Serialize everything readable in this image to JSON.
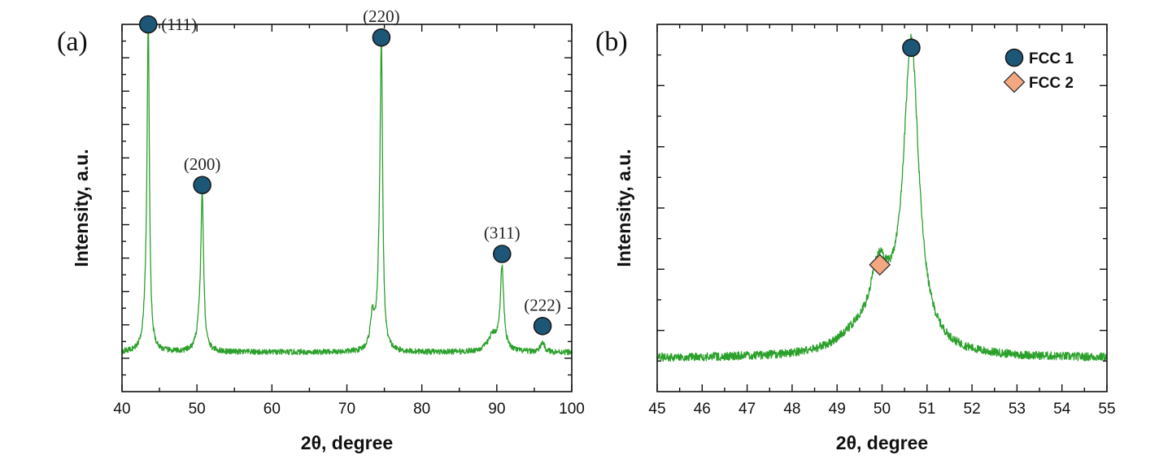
{
  "colors": {
    "trace": "#2ca02c",
    "fcc1_marker": "#1d5778",
    "fcc2_marker": "#f3a882",
    "marker_edge": "#1a1a1a"
  },
  "chart_data": [
    {
      "type": "line",
      "panel_label": "(a)",
      "xlabel": "2θ, degree",
      "ylabel": "Intensity, a.u.",
      "xlim": [
        40,
        100
      ],
      "xticks": [
        "40",
        "50",
        "60",
        "70",
        "80",
        "90",
        "100"
      ],
      "ylim": [
        -12,
        100
      ],
      "y_ticks_labeled": false,
      "baseline": 0,
      "noise": 0.6,
      "peaks": [
        {
          "center": 43.5,
          "height": 95,
          "width": 0.18
        },
        {
          "center": 43.2,
          "height": 10,
          "width": 0.4
        },
        {
          "center": 50.7,
          "height": 46,
          "width": 0.22
        },
        {
          "center": 50.3,
          "height": 6,
          "width": 0.4
        },
        {
          "center": 73.4,
          "height": 10,
          "width": 0.35
        },
        {
          "center": 74.6,
          "height": 88,
          "width": 0.2
        },
        {
          "center": 74.3,
          "height": 14,
          "width": 0.3
        },
        {
          "center": 89.5,
          "height": 5,
          "width": 0.8
        },
        {
          "center": 90.7,
          "height": 25,
          "width": 0.28
        },
        {
          "center": 96.1,
          "height": 3,
          "width": 0.3
        }
      ],
      "markers": [
        {
          "x": 43.5,
          "y": 100,
          "phase": "FCC 1",
          "label": "(111)",
          "label_side": "right"
        },
        {
          "x": 50.7,
          "y": 51,
          "phase": "FCC 1",
          "label": "(200)",
          "label_side": "above"
        },
        {
          "x": 74.6,
          "y": 96,
          "phase": "FCC 1",
          "label": "(220)",
          "label_side": "above"
        },
        {
          "x": 90.7,
          "y": 30,
          "phase": "FCC 1",
          "label": "(311)",
          "label_side": "above"
        },
        {
          "x": 96.1,
          "y": 8,
          "phase": "FCC 1",
          "label": "(222)",
          "label_side": "above"
        }
      ]
    },
    {
      "type": "line",
      "panel_label": "(b)",
      "xlabel": "2θ, degree",
      "ylabel": "Intensity, a.u.",
      "xlim": [
        45,
        55
      ],
      "xticks": [
        "45",
        "46",
        "47",
        "48",
        "49",
        "50",
        "51",
        "52",
        "53",
        "54",
        "55"
      ],
      "ylim": [
        -10,
        100
      ],
      "y_ticks_labeled": false,
      "baseline": 0,
      "noise": 0.9,
      "peaks": [
        {
          "center": 50.65,
          "height": 88,
          "width": 0.2
        },
        {
          "center": 49.92,
          "height": 18,
          "width": 0.22
        },
        {
          "center": 50.3,
          "height": 8,
          "width": 0.6
        },
        {
          "center": 49.4,
          "height": 4,
          "width": 0.5
        }
      ],
      "markers": [
        {
          "x": 50.65,
          "y": 93,
          "phase": "FCC 1",
          "label": ""
        },
        {
          "x": 49.95,
          "y": 28,
          "phase": "FCC 2",
          "label": ""
        }
      ],
      "legend": {
        "position": "top-right",
        "entries": [
          {
            "name": "FCC 1",
            "marker": "circle"
          },
          {
            "name": "FCC 2",
            "marker": "diamond"
          }
        ]
      }
    }
  ]
}
